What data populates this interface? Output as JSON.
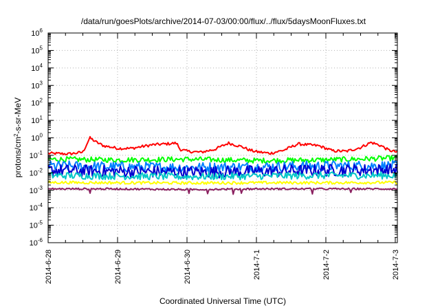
{
  "chart_data": {
    "type": "line",
    "title": "/data/run/goesPlots/archive/2014-07-03/00:00/flux/../flux/5daysMoonFluxes.txt",
    "xlabel": "Coordinated Universal Time (UTC)",
    "ylabel_parts": [
      "protons/cm",
      "2",
      "-s-sr-MeV"
    ],
    "y_scale": "log",
    "ylim": [
      1e-06,
      1000000.0
    ],
    "y_tick_base": "10",
    "y_tick_exponents": [
      "-6",
      "-5",
      "-4",
      "-3",
      "-2",
      "-1",
      "0",
      "1",
      "2",
      "3",
      "4",
      "5",
      "6"
    ],
    "x_ticks": [
      "2014-6-28",
      "2014-6-29",
      "2014-6-30",
      "2014-7-1",
      "2014-7-2",
      "2014-7-3"
    ],
    "x_range_days": [
      0,
      5.03
    ],
    "grid": true,
    "legend": "none",
    "series": [
      {
        "color": "#ff0000",
        "noise": 0.08,
        "x": [
          0,
          0.3,
          0.5,
          0.6,
          0.7,
          0.8,
          0.9,
          1.0,
          1.2,
          1.5,
          1.7,
          1.85,
          1.9,
          2.0,
          2.2,
          2.4,
          2.6,
          2.8,
          2.9,
          3.0,
          3.2,
          3.4,
          3.6,
          3.9,
          4.1,
          4.3,
          4.5,
          4.65,
          4.8,
          4.9,
          5.03
        ],
        "y": [
          0.13,
          0.12,
          0.15,
          1.0,
          0.55,
          0.35,
          0.3,
          0.25,
          0.25,
          0.4,
          0.45,
          0.5,
          0.22,
          0.17,
          0.15,
          0.22,
          0.5,
          0.3,
          0.2,
          0.16,
          0.13,
          0.2,
          0.45,
          0.35,
          0.18,
          0.17,
          0.28,
          0.55,
          0.35,
          0.2,
          0.15
        ]
      },
      {
        "color": "#00ff00",
        "noise": 0.15,
        "x": [
          0,
          1,
          2,
          3,
          4,
          5.03
        ],
        "y": [
          0.06,
          0.055,
          0.06,
          0.05,
          0.055,
          0.07
        ]
      },
      {
        "color": "#0080ff",
        "noise": 0.3,
        "x": [
          0,
          1,
          2,
          3,
          4,
          5.03
        ],
        "y": [
          0.025,
          0.022,
          0.02,
          0.022,
          0.025,
          0.025
        ]
      },
      {
        "color": "#0000d0",
        "noise": 0.35,
        "x": [
          0,
          1,
          2,
          3,
          4,
          5.03
        ],
        "y": [
          0.014,
          0.012,
          0.011,
          0.012,
          0.014,
          0.015
        ]
      },
      {
        "color": "#00c8c8",
        "noise": 0.2,
        "x": [
          0,
          1,
          2,
          3,
          4,
          5.03
        ],
        "y": [
          0.007,
          0.0065,
          0.006,
          0.0065,
          0.007,
          0.007
        ]
      },
      {
        "color": "#ffff00",
        "noise": 0.08,
        "x": [
          0,
          1,
          2,
          3,
          4,
          5.03
        ],
        "y": [
          0.0028,
          0.0027,
          0.0026,
          0.0027,
          0.0027,
          0.0028
        ]
      },
      {
        "color": "#8b2060",
        "noise": 0.05,
        "x": [
          0,
          1,
          2,
          3,
          4,
          5.03
        ],
        "y": [
          0.0012,
          0.0012,
          0.0011,
          0.0012,
          0.0012,
          0.0012
        ]
      }
    ]
  }
}
